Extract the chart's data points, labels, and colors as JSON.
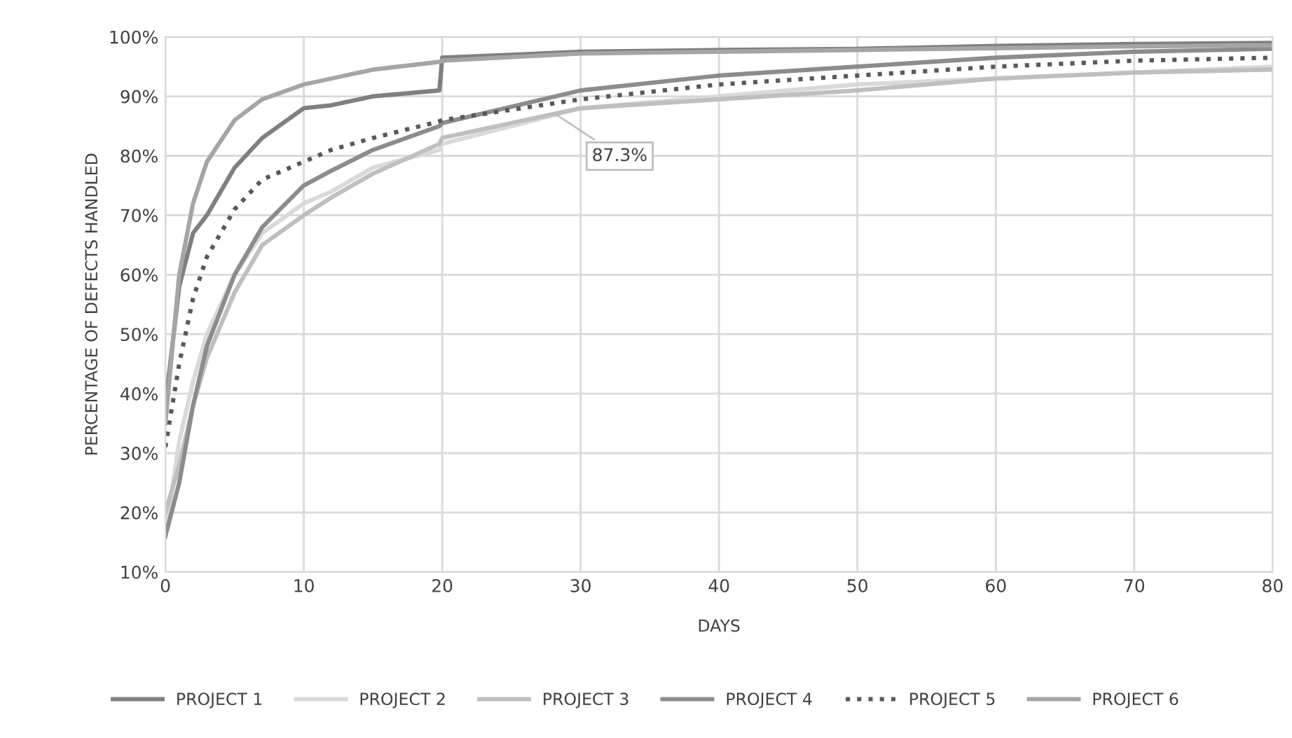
{
  "chart_data": {
    "type": "line",
    "xlabel": "DAYS",
    "ylabel": "PERCENTAGE OF DEFECTS HANDLED",
    "x": [
      0,
      1,
      2,
      3,
      5,
      7,
      10,
      12,
      15,
      19.8,
      20,
      30,
      40,
      50,
      60,
      70,
      80
    ],
    "xlim": [
      0,
      80
    ],
    "xticks": [
      0,
      10,
      20,
      30,
      40,
      50,
      60,
      70,
      80
    ],
    "ylim": [
      10,
      100
    ],
    "yticks": [
      {
        "value": 10,
        "label": "10%"
      },
      {
        "value": 20,
        "label": "20%"
      },
      {
        "value": 30,
        "label": "30%"
      },
      {
        "value": 40,
        "label": "40%"
      },
      {
        "value": 50,
        "label": "50%"
      },
      {
        "value": 60,
        "label": "60%"
      },
      {
        "value": 70,
        "label": "70%"
      },
      {
        "value": 80,
        "label": "80%"
      },
      {
        "value": 90,
        "label": "90%"
      },
      {
        "value": 100,
        "label": "100%"
      }
    ],
    "grid": true,
    "legend": "bottom",
    "marker": "none",
    "series": [
      {
        "name": "PROJECT 1",
        "color": "#7f7f7f",
        "values": [
          38,
          58,
          67,
          70,
          78,
          83,
          88,
          88.5,
          90,
          91,
          96.5,
          97.5,
          97.8,
          98,
          98.5,
          98.8,
          99
        ]
      },
      {
        "name": "PROJECT 2",
        "color": "#d9d9d9",
        "values": [
          16,
          32,
          42,
          50,
          60,
          67,
          72,
          74,
          78,
          81,
          82,
          88,
          90,
          92,
          93,
          94,
          95
        ]
      },
      {
        "name": "PROJECT 3",
        "color": "#bfbfbf",
        "values": [
          20,
          28,
          38,
          46,
          57,
          65,
          70,
          73,
          77,
          82,
          83,
          88,
          89.5,
          91,
          93,
          94,
          94.5
        ]
      },
      {
        "name": "PROJECT 4",
        "color": "#8c8c8c",
        "values": [
          16,
          25,
          38,
          48,
          60,
          68,
          75,
          77.5,
          81,
          85,
          85.5,
          91,
          93.5,
          95,
          96.5,
          97.5,
          98
        ]
      },
      {
        "name": "PROJECT 5",
        "color": "#595959",
        "line_style": "dotted",
        "values": [
          31,
          45,
          56,
          63,
          71,
          76,
          79,
          81,
          83,
          85.8,
          86,
          89.5,
          92,
          93.5,
          95,
          96,
          96.5
        ]
      },
      {
        "name": "PROJECT 6",
        "color": "#a5a5a5",
        "values": [
          35,
          60,
          72,
          79,
          86,
          89.5,
          92,
          93,
          94.5,
          95.8,
          96,
          97.2,
          97.5,
          97.8,
          98.1,
          98.4,
          98.6
        ]
      }
    ],
    "annotations": [
      {
        "text": "87.3%",
        "x": 28,
        "y": 87.3
      }
    ]
  }
}
